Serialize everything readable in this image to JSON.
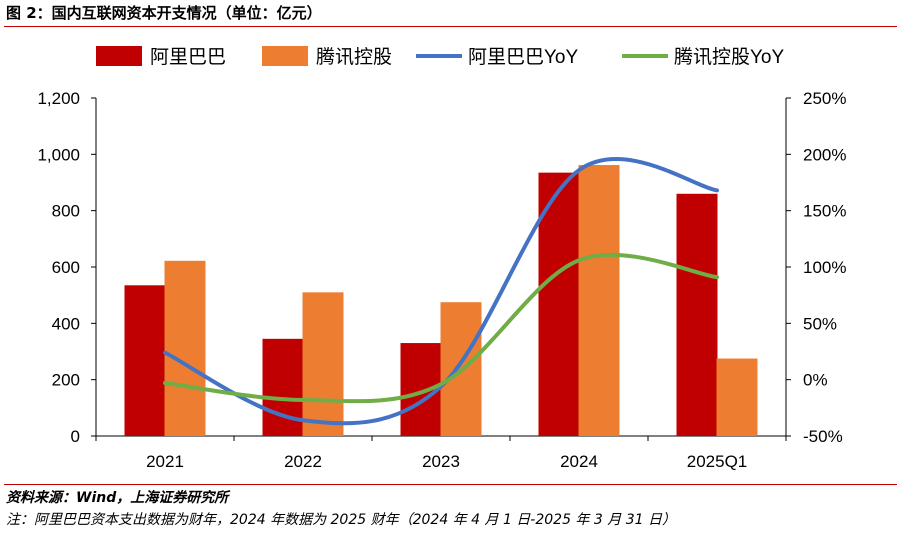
{
  "title": "图 2：国内互联网资本开支情况（单位：亿元）",
  "source": "资料来源：Wind，上海证券研究所",
  "note": "注：阿里巴巴资本支出数据为财年，2024 年数据为 2025 财年（2024 年 4 月 1 日-2025 年 3 月 31 日）",
  "chart_data": {
    "type": "bar",
    "categories": [
      "2021",
      "2022",
      "2023",
      "2024",
      "2025Q1"
    ],
    "series": [
      {
        "name": "阿里巴巴",
        "type": "bar",
        "axis": "left",
        "color": "#c00000",
        "values": [
          535,
          345,
          330,
          935,
          860
        ]
      },
      {
        "name": "腾讯控股",
        "type": "bar",
        "axis": "left",
        "color": "#ed7d31",
        "values": [
          622,
          510,
          475,
          962,
          275
        ]
      },
      {
        "name": "阿里巴巴YoY",
        "type": "line",
        "axis": "right",
        "color": "#4472c4",
        "values": [
          24,
          -36,
          -6,
          186,
          168
        ]
      },
      {
        "name": "腾讯控股YoY",
        "type": "line",
        "axis": "right",
        "color": "#70ad47",
        "values": [
          -3,
          -18,
          -4,
          106,
          91
        ]
      }
    ],
    "yleft": {
      "min": 0,
      "max": 1200,
      "step": 200,
      "ticks": [
        "0",
        "200",
        "400",
        "600",
        "800",
        "1,000",
        "1,200"
      ]
    },
    "yright": {
      "min": -50,
      "max": 250,
      "step": 50,
      "ticks": [
        "-50%",
        "0%",
        "50%",
        "100%",
        "150%",
        "200%",
        "250%"
      ]
    },
    "legend_position": "top",
    "grid": false
  }
}
